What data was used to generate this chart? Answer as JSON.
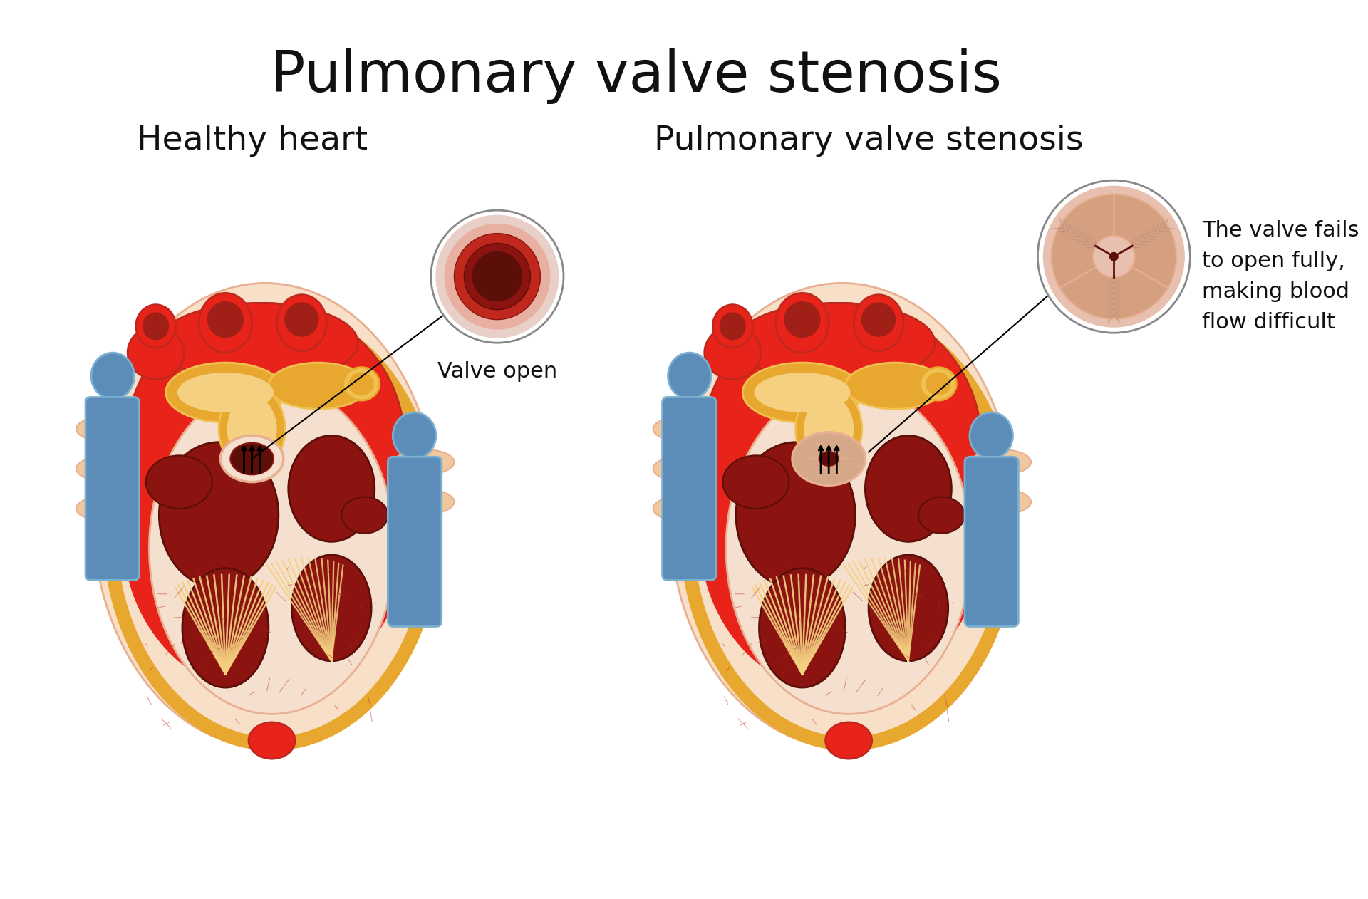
{
  "title": "Pulmonary valve stenosis",
  "title_fontsize": 58,
  "title_fontweight": "normal",
  "title_color": "#111111",
  "background_color": "#ffffff",
  "left_label": "Healthy heart",
  "right_label": "Pulmonary valve stenosis",
  "label_fontsize": 34,
  "valve_open_label": "Valve open",
  "valve_fail_label": "The valve fails\nto open fully,\nmaking blood\nflow difficult",
  "annotation_fontsize": 22,
  "colors": {
    "bright_red": "#e8231a",
    "medium_red": "#c0281e",
    "dark_red": "#8b1410",
    "very_dark_red": "#5c0e08",
    "golden_yellow": "#e8a830",
    "light_yellow": "#f5d080",
    "mid_yellow": "#f0c050",
    "blue_vessel": "#5b8db8",
    "light_blue": "#7aafd0",
    "peach": "#f0c8a0",
    "light_peach": "#f8dfc8",
    "skin_pink": "#e8b090",
    "pale_peach": "#f5e0d0",
    "white": "#ffffff",
    "black": "#111111",
    "circle_bg_open": "#e8b0a0",
    "circle_bg_sten": "#e8c0b0",
    "stenosis_beige": "#d4a888",
    "red_dark_vessel": "#a02018"
  }
}
